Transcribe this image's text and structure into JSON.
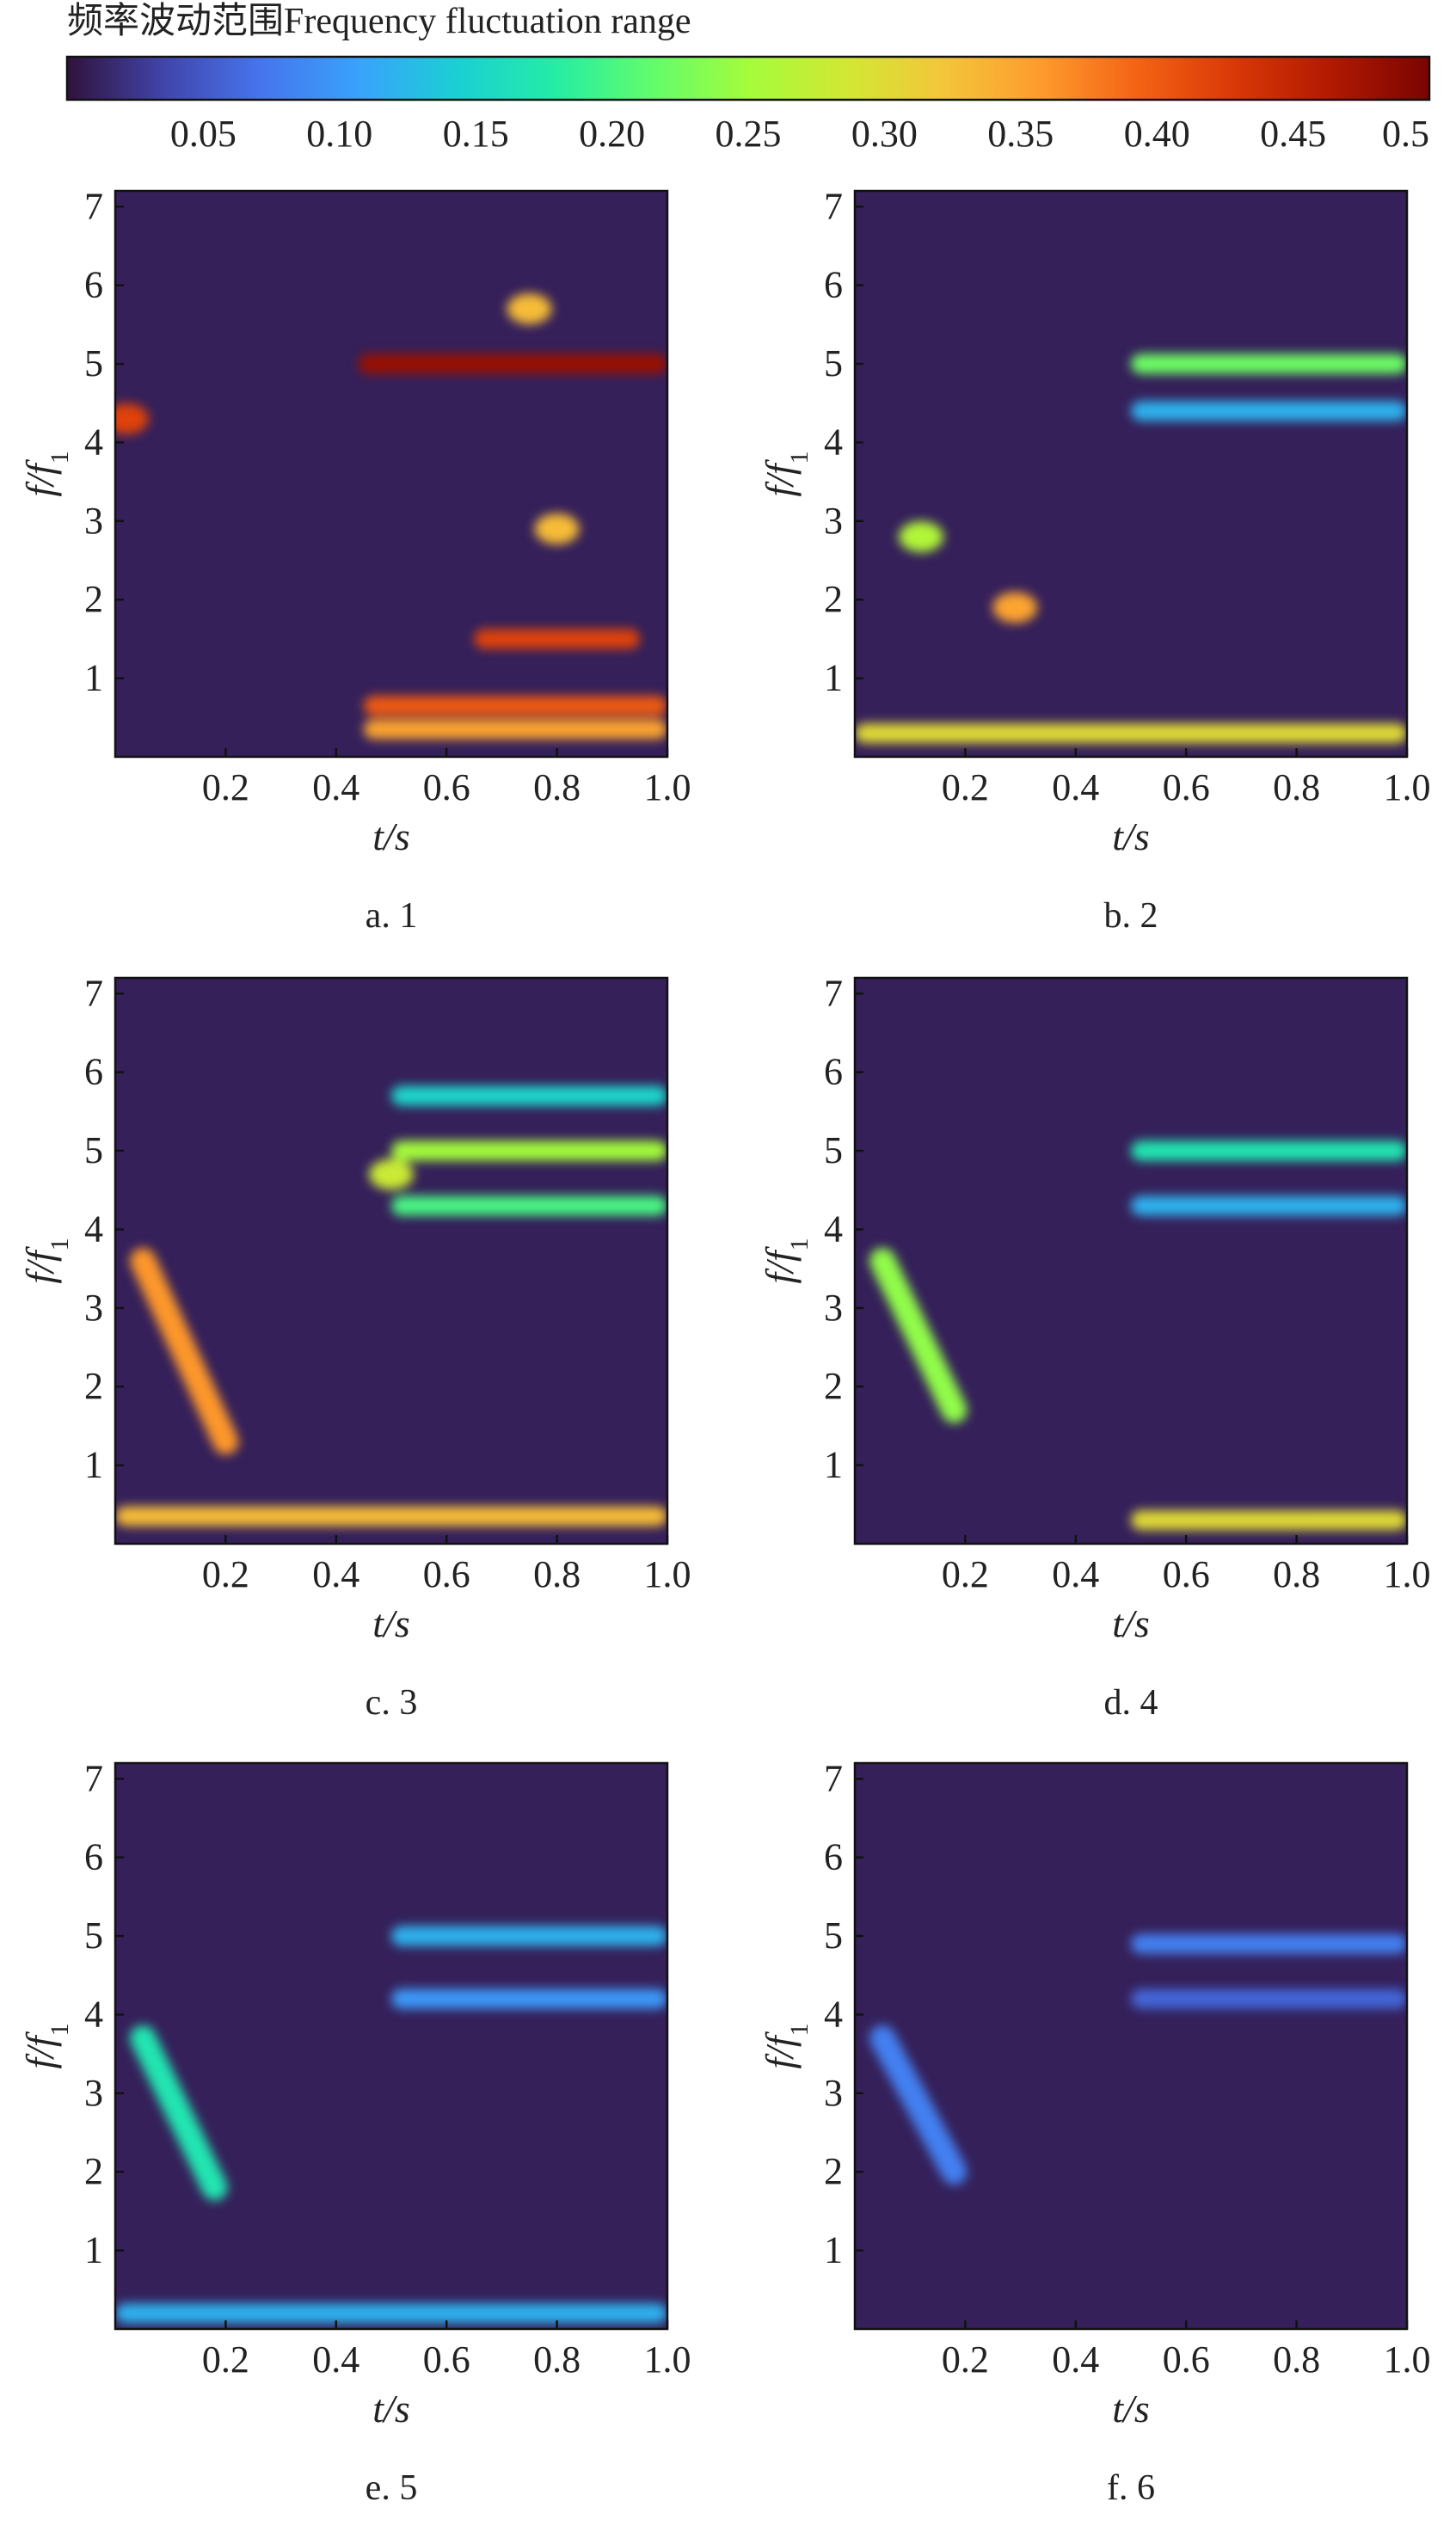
{
  "colorbar": {
    "title": "频率波动范围Frequency fluctuation range",
    "range": [
      0,
      0.5
    ],
    "tick_labels": [
      "0.05",
      "0.10",
      "0.15",
      "0.20",
      "0.25",
      "0.30",
      "0.35",
      "0.40",
      "0.45",
      "0.5"
    ],
    "tick_values": [
      0.05,
      0.1,
      0.15,
      0.2,
      0.25,
      0.3,
      0.35,
      0.4,
      0.45,
      0.5
    ],
    "colormap": [
      "#30123b",
      "#4145ab",
      "#4675ed",
      "#39a2fc",
      "#1bcfd4",
      "#24eca6",
      "#61fc6c",
      "#a4fc3b",
      "#d1e834",
      "#f3c63a",
      "#fe9b2d",
      "#f36315",
      "#d93806",
      "#b11901",
      "#7a0402"
    ]
  },
  "chart_data": [
    {
      "type": "heatmap",
      "caption": "a. 1",
      "xlabel": "t/s",
      "ylabel": "f/f1",
      "xlim": [
        0,
        1.0
      ],
      "ylim": [
        0,
        7.2
      ],
      "x_ticks": [
        "0.2",
        "0.4",
        "0.6",
        "0.8",
        "1.0"
      ],
      "y_ticks": [
        "1",
        "2",
        "3",
        "4",
        "5",
        "6",
        "7"
      ],
      "features": [
        {
          "kind": "band",
          "x": [
            0.44,
            1.0
          ],
          "y": 5.0,
          "value": 0.48
        },
        {
          "kind": "band",
          "x": [
            0.65,
            0.95
          ],
          "y": 1.5,
          "value": 0.42
        },
        {
          "kind": "band",
          "x": [
            0.45,
            1.0
          ],
          "y": 0.65,
          "value": 0.4
        },
        {
          "kind": "band",
          "x": [
            0.45,
            1.0
          ],
          "y": 0.35,
          "value": 0.35
        },
        {
          "kind": "spot",
          "x": 0.02,
          "y": 4.3,
          "value": 0.42
        },
        {
          "kind": "spot",
          "x": 0.8,
          "y": 2.9,
          "value": 0.33
        },
        {
          "kind": "spot",
          "x": 0.75,
          "y": 5.7,
          "value": 0.33
        }
      ]
    },
    {
      "type": "heatmap",
      "caption": "b. 2",
      "xlabel": "t/s",
      "ylabel": "f/f1",
      "xlim": [
        0,
        1.0
      ],
      "ylim": [
        0,
        7.2
      ],
      "x_ticks": [
        "0.2",
        "0.4",
        "0.6",
        "0.8",
        "1.0"
      ],
      "y_ticks": [
        "1",
        "2",
        "3",
        "4",
        "5",
        "6",
        "7"
      ],
      "features": [
        {
          "kind": "band",
          "x": [
            0.5,
            1.0
          ],
          "y": 5.0,
          "value": 0.22
        },
        {
          "kind": "band",
          "x": [
            0.5,
            1.0
          ],
          "y": 4.4,
          "value": 0.12
        },
        {
          "kind": "spot",
          "x": 0.29,
          "y": 1.9,
          "value": 0.35
        },
        {
          "kind": "spot",
          "x": 0.12,
          "y": 2.8,
          "value": 0.26
        },
        {
          "kind": "band",
          "x": [
            0.0,
            1.0
          ],
          "y": 0.3,
          "value": 0.3
        }
      ]
    },
    {
      "type": "heatmap",
      "caption": "c. 3",
      "xlabel": "t/s",
      "ylabel": "f/f1",
      "xlim": [
        0,
        1.0
      ],
      "ylim": [
        0,
        7.2
      ],
      "x_ticks": [
        "0.2",
        "0.4",
        "0.6",
        "0.8",
        "1.0"
      ],
      "y_ticks": [
        "1",
        "2",
        "3",
        "4",
        "5",
        "6",
        "7"
      ],
      "features": [
        {
          "kind": "band",
          "x": [
            0.5,
            1.0
          ],
          "y": 5.0,
          "value": 0.25
        },
        {
          "kind": "band",
          "x": [
            0.5,
            1.0
          ],
          "y": 4.3,
          "value": 0.2
        },
        {
          "kind": "band",
          "x": [
            0.5,
            1.0
          ],
          "y": 5.7,
          "value": 0.15
        },
        {
          "kind": "spot",
          "x": 0.5,
          "y": 4.7,
          "value": 0.28
        },
        {
          "kind": "ridge",
          "x": [
            0.05,
            0.2
          ],
          "y": [
            3.6,
            1.3
          ],
          "value": 0.36
        },
        {
          "kind": "band",
          "x": [
            0.0,
            1.0
          ],
          "y": 0.35,
          "value": 0.33
        }
      ]
    },
    {
      "type": "heatmap",
      "caption": "d. 4",
      "xlabel": "t/s",
      "ylabel": "f/f1",
      "xlim": [
        0,
        1.0
      ],
      "ylim": [
        0,
        7.2
      ],
      "x_ticks": [
        "0.2",
        "0.4",
        "0.6",
        "0.8",
        "1.0"
      ],
      "y_ticks": [
        "1",
        "2",
        "3",
        "4",
        "5",
        "6",
        "7"
      ],
      "features": [
        {
          "kind": "band",
          "x": [
            0.5,
            1.0
          ],
          "y": 5.0,
          "value": 0.17
        },
        {
          "kind": "band",
          "x": [
            0.5,
            1.0
          ],
          "y": 4.3,
          "value": 0.12
        },
        {
          "kind": "ridge",
          "x": [
            0.05,
            0.18
          ],
          "y": [
            3.6,
            1.7
          ],
          "value": 0.24
        },
        {
          "kind": "band",
          "x": [
            0.5,
            1.0
          ],
          "y": 0.3,
          "value": 0.3
        }
      ]
    },
    {
      "type": "heatmap",
      "caption": "e. 5",
      "xlabel": "t/s",
      "ylabel": "f/f1",
      "xlim": [
        0,
        1.0
      ],
      "ylim": [
        0,
        7.2
      ],
      "x_ticks": [
        "0.2",
        "0.4",
        "0.6",
        "0.8",
        "1.0"
      ],
      "y_ticks": [
        "1",
        "2",
        "3",
        "4",
        "5",
        "6",
        "7"
      ],
      "features": [
        {
          "kind": "band",
          "x": [
            0.5,
            1.0
          ],
          "y": 5.0,
          "value": 0.12
        },
        {
          "kind": "band",
          "x": [
            0.5,
            1.0
          ],
          "y": 4.2,
          "value": 0.1
        },
        {
          "kind": "ridge",
          "x": [
            0.05,
            0.18
          ],
          "y": [
            3.7,
            1.8
          ],
          "value": 0.17
        },
        {
          "kind": "band",
          "x": [
            0.0,
            1.0
          ],
          "y": 0.2,
          "value": 0.12
        }
      ]
    },
    {
      "type": "heatmap",
      "caption": "f. 6",
      "xlabel": "t/s",
      "ylabel": "f/f1",
      "xlim": [
        0,
        1.0
      ],
      "ylim": [
        0,
        7.2
      ],
      "x_ticks": [
        "0.2",
        "0.4",
        "0.6",
        "0.8",
        "1.0"
      ],
      "y_ticks": [
        "1",
        "2",
        "3",
        "4",
        "5",
        "6",
        "7"
      ],
      "features": [
        {
          "kind": "band",
          "x": [
            0.5,
            1.0
          ],
          "y": 4.9,
          "value": 0.08
        },
        {
          "kind": "band",
          "x": [
            0.5,
            1.0
          ],
          "y": 4.2,
          "value": 0.06
        },
        {
          "kind": "ridge",
          "x": [
            0.05,
            0.18
          ],
          "y": [
            3.7,
            2.0
          ],
          "value": 0.08
        }
      ]
    }
  ]
}
